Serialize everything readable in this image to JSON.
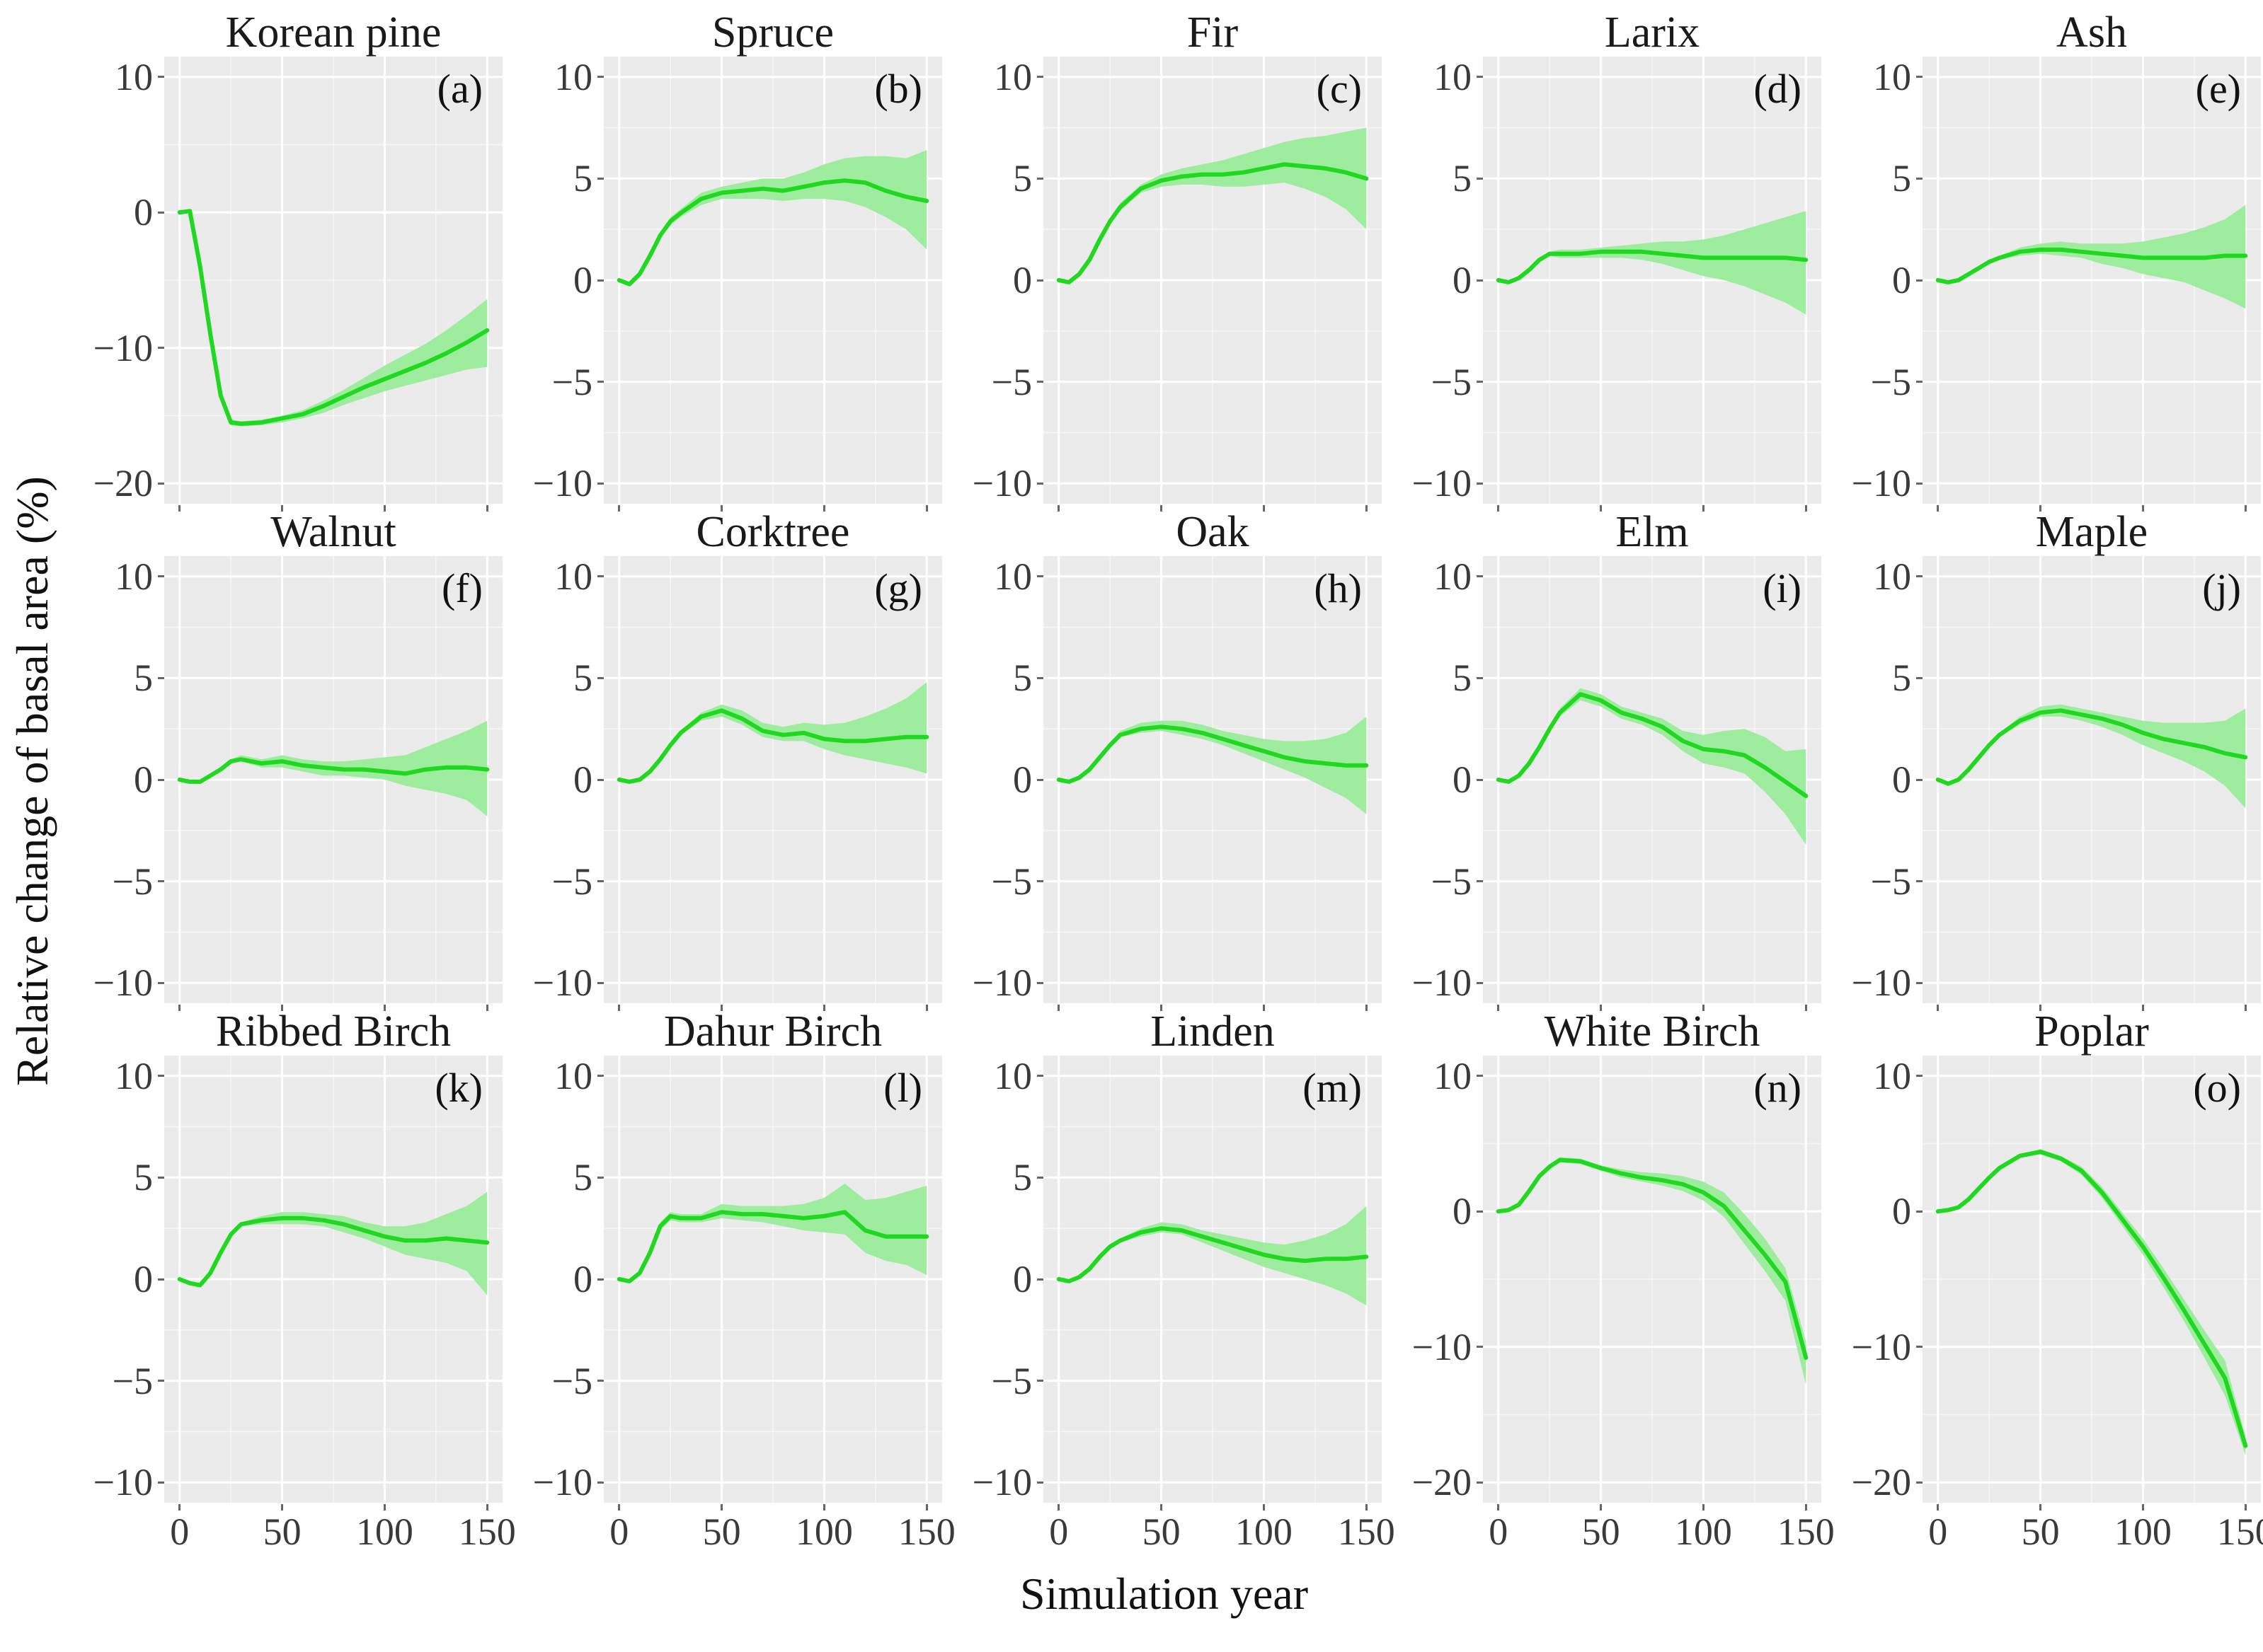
{
  "figure": {
    "colors": {
      "line": "#1fd81f",
      "band": "#9aec9a",
      "panel_bg": "#ebebeb",
      "grid_major": "#ffffff",
      "grid_minor": "#ffffff",
      "tick_label": "#3a3a3a",
      "tick_mark": "#666666",
      "title": "#1a1a1a"
    }
  },
  "chart_data": {
    "type": "line",
    "x_label": "Simulation year",
    "y_label": "Relative change of basal area (%)",
    "x_ticks": [
      0,
      50,
      100,
      150
    ],
    "x": [
      0,
      5,
      10,
      15,
      20,
      25,
      30,
      40,
      50,
      60,
      70,
      80,
      90,
      100,
      110,
      120,
      130,
      140,
      150
    ],
    "panels": [
      {
        "species": "Korean pine",
        "label": "(a)",
        "ylim": [
          -20,
          10
        ],
        "y_ticks": [
          10,
          0,
          -10,
          -20
        ],
        "mean": [
          0,
          0.1,
          -4.0,
          -9.0,
          -13.5,
          -15.5,
          -15.6,
          -15.5,
          -15.2,
          -14.9,
          -14.3,
          -13.6,
          -12.9,
          -12.3,
          -11.7,
          -11.1,
          -10.4,
          -9.6,
          -8.7
        ],
        "lower": [
          0,
          0.0,
          -4.2,
          -9.2,
          -13.7,
          -15.7,
          -15.8,
          -15.7,
          -15.5,
          -15.2,
          -14.8,
          -14.2,
          -13.7,
          -13.2,
          -12.8,
          -12.4,
          -12.0,
          -11.6,
          -11.4
        ],
        "upper": [
          0,
          0.2,
          -3.8,
          -8.8,
          -13.3,
          -15.3,
          -15.4,
          -15.3,
          -15.0,
          -14.6,
          -13.9,
          -13.1,
          -12.2,
          -11.3,
          -10.5,
          -9.7,
          -8.7,
          -7.6,
          -6.4
        ]
      },
      {
        "species": "Spruce",
        "label": "(b)",
        "ylim": [
          -10,
          10
        ],
        "y_ticks": [
          10,
          5,
          0,
          -5,
          -10
        ],
        "mean": [
          0,
          -0.2,
          0.3,
          1.2,
          2.2,
          2.9,
          3.3,
          4.0,
          4.3,
          4.4,
          4.5,
          4.4,
          4.6,
          4.8,
          4.9,
          4.8,
          4.4,
          4.1,
          3.9
        ],
        "lower": [
          0,
          -0.3,
          0.2,
          1.1,
          2.1,
          2.7,
          3.1,
          3.7,
          4.0,
          4.0,
          4.0,
          3.9,
          4.0,
          4.0,
          3.9,
          3.6,
          3.1,
          2.5,
          1.5
        ],
        "upper": [
          0,
          -0.1,
          0.4,
          1.3,
          2.3,
          3.1,
          3.5,
          4.3,
          4.6,
          4.8,
          5.0,
          5.0,
          5.3,
          5.7,
          6.0,
          6.1,
          6.1,
          6.0,
          6.4
        ]
      },
      {
        "species": "Fir",
        "label": "(c)",
        "ylim": [
          -10,
          10
        ],
        "y_ticks": [
          10,
          5,
          0,
          -5,
          -10
        ],
        "mean": [
          0,
          -0.1,
          0.3,
          1.0,
          2.0,
          2.9,
          3.6,
          4.5,
          4.9,
          5.1,
          5.2,
          5.2,
          5.3,
          5.5,
          5.7,
          5.6,
          5.5,
          5.3,
          5.0
        ],
        "lower": [
          0,
          -0.2,
          0.2,
          0.9,
          1.9,
          2.8,
          3.4,
          4.3,
          4.6,
          4.7,
          4.7,
          4.6,
          4.6,
          4.7,
          4.8,
          4.5,
          4.1,
          3.5,
          2.5
        ],
        "upper": [
          0,
          0.0,
          0.4,
          1.1,
          2.1,
          3.0,
          3.8,
          4.7,
          5.2,
          5.5,
          5.7,
          5.9,
          6.2,
          6.5,
          6.8,
          7.0,
          7.1,
          7.3,
          7.5
        ]
      },
      {
        "species": "Larix",
        "label": "(d)",
        "ylim": [
          -10,
          10
        ],
        "y_ticks": [
          10,
          5,
          0,
          -5,
          -10
        ],
        "mean": [
          0,
          -0.1,
          0.1,
          0.5,
          1.0,
          1.3,
          1.3,
          1.3,
          1.4,
          1.4,
          1.4,
          1.3,
          1.2,
          1.1,
          1.1,
          1.1,
          1.1,
          1.1,
          1.0
        ],
        "lower": [
          0,
          -0.2,
          0.0,
          0.4,
          0.9,
          1.2,
          1.1,
          1.1,
          1.1,
          1.1,
          1.0,
          0.8,
          0.5,
          0.2,
          0.0,
          -0.3,
          -0.7,
          -1.1,
          -1.7
        ],
        "upper": [
          0,
          0.0,
          0.2,
          0.6,
          1.1,
          1.4,
          1.5,
          1.5,
          1.6,
          1.7,
          1.8,
          1.9,
          1.9,
          2.0,
          2.2,
          2.5,
          2.8,
          3.1,
          3.4
        ]
      },
      {
        "species": "Ash",
        "label": "(e)",
        "ylim": [
          -10,
          10
        ],
        "y_ticks": [
          10,
          5,
          0,
          -5,
          -10
        ],
        "mean": [
          0,
          -0.1,
          0.0,
          0.3,
          0.6,
          0.9,
          1.1,
          1.4,
          1.5,
          1.5,
          1.4,
          1.3,
          1.2,
          1.1,
          1.1,
          1.1,
          1.1,
          1.2,
          1.2
        ],
        "lower": [
          0,
          -0.2,
          -0.1,
          0.2,
          0.5,
          0.8,
          1.0,
          1.2,
          1.3,
          1.2,
          1.1,
          0.8,
          0.6,
          0.3,
          0.1,
          -0.1,
          -0.5,
          -0.9,
          -1.4
        ],
        "upper": [
          0,
          0.0,
          0.1,
          0.4,
          0.7,
          1.0,
          1.2,
          1.6,
          1.8,
          1.9,
          1.8,
          1.8,
          1.8,
          1.9,
          2.1,
          2.3,
          2.6,
          3.0,
          3.7
        ]
      },
      {
        "species": "Walnut",
        "label": "(f)",
        "ylim": [
          -10,
          10
        ],
        "y_ticks": [
          10,
          5,
          0,
          -5,
          -10
        ],
        "mean": [
          0,
          -0.1,
          -0.1,
          0.2,
          0.5,
          0.9,
          1.0,
          0.8,
          0.9,
          0.7,
          0.6,
          0.5,
          0.5,
          0.4,
          0.3,
          0.5,
          0.6,
          0.6,
          0.5
        ],
        "lower": [
          0,
          -0.2,
          -0.2,
          0.1,
          0.4,
          0.8,
          0.9,
          0.6,
          0.6,
          0.4,
          0.2,
          0.2,
          0.1,
          0.0,
          -0.3,
          -0.5,
          -0.7,
          -1.0,
          -1.8
        ],
        "upper": [
          0,
          0.0,
          0.0,
          0.3,
          0.6,
          1.0,
          1.2,
          1.0,
          1.2,
          1.0,
          0.9,
          0.9,
          1.0,
          1.1,
          1.2,
          1.6,
          2.0,
          2.4,
          2.9
        ]
      },
      {
        "species": "Corktree",
        "label": "(g)",
        "ylim": [
          -10,
          10
        ],
        "y_ticks": [
          10,
          5,
          0,
          -5,
          -10
        ],
        "mean": [
          0,
          -0.1,
          0.0,
          0.4,
          1.0,
          1.7,
          2.3,
          3.1,
          3.4,
          3.0,
          2.4,
          2.2,
          2.3,
          2.0,
          1.9,
          1.9,
          2.0,
          2.1,
          2.1
        ],
        "lower": [
          0,
          -0.2,
          -0.1,
          0.3,
          0.9,
          1.6,
          2.2,
          2.9,
          3.1,
          2.7,
          2.1,
          1.9,
          1.9,
          1.5,
          1.2,
          1.0,
          0.8,
          0.6,
          0.3
        ],
        "upper": [
          0,
          0.0,
          0.1,
          0.5,
          1.1,
          1.8,
          2.4,
          3.3,
          3.7,
          3.4,
          2.8,
          2.6,
          2.8,
          2.7,
          2.8,
          3.1,
          3.5,
          4.0,
          4.8
        ]
      },
      {
        "species": "Oak",
        "label": "(h)",
        "ylim": [
          -10,
          10
        ],
        "y_ticks": [
          10,
          5,
          0,
          -5,
          -10
        ],
        "mean": [
          0,
          -0.1,
          0.1,
          0.5,
          1.1,
          1.7,
          2.2,
          2.5,
          2.6,
          2.5,
          2.3,
          2.0,
          1.7,
          1.4,
          1.1,
          0.9,
          0.8,
          0.7,
          0.7
        ],
        "lower": [
          0,
          -0.2,
          0.0,
          0.4,
          1.0,
          1.6,
          2.1,
          2.3,
          2.4,
          2.2,
          2.0,
          1.7,
          1.3,
          0.9,
          0.5,
          0.1,
          -0.4,
          -0.9,
          -1.7
        ],
        "upper": [
          0,
          0.0,
          0.2,
          0.6,
          1.2,
          1.8,
          2.4,
          2.8,
          2.9,
          2.9,
          2.7,
          2.4,
          2.2,
          2.0,
          1.9,
          1.9,
          2.0,
          2.3,
          3.1
        ]
      },
      {
        "species": "Elm",
        "label": "(i)",
        "ylim": [
          -10,
          10
        ],
        "y_ticks": [
          10,
          5,
          0,
          -5,
          -10
        ],
        "mean": [
          0,
          -0.1,
          0.2,
          0.8,
          1.6,
          2.5,
          3.3,
          4.2,
          3.9,
          3.3,
          3.0,
          2.6,
          1.9,
          1.5,
          1.4,
          1.2,
          0.6,
          -0.1,
          -0.8
        ],
        "lower": [
          0,
          -0.2,
          0.1,
          0.7,
          1.5,
          2.4,
          3.1,
          3.9,
          3.6,
          3.0,
          2.7,
          2.2,
          1.4,
          0.8,
          0.6,
          0.3,
          -0.6,
          -1.7,
          -3.2
        ],
        "upper": [
          0,
          0.0,
          0.3,
          0.9,
          1.7,
          2.6,
          3.5,
          4.5,
          4.2,
          3.6,
          3.3,
          3.0,
          2.4,
          2.2,
          2.4,
          2.5,
          2.1,
          1.4,
          1.5
        ]
      },
      {
        "species": "Maple",
        "label": "(j)",
        "ylim": [
          -10,
          10
        ],
        "y_ticks": [
          10,
          5,
          0,
          -5,
          -10
        ],
        "mean": [
          0,
          -0.2,
          0.0,
          0.5,
          1.1,
          1.7,
          2.2,
          2.9,
          3.3,
          3.4,
          3.2,
          3.0,
          2.7,
          2.3,
          2.0,
          1.8,
          1.6,
          1.3,
          1.1
        ],
        "lower": [
          0,
          -0.3,
          -0.1,
          0.4,
          1.0,
          1.6,
          2.1,
          2.7,
          3.1,
          3.1,
          2.9,
          2.6,
          2.2,
          1.7,
          1.3,
          0.9,
          0.4,
          -0.3,
          -1.4
        ],
        "upper": [
          0,
          -0.1,
          0.1,
          0.6,
          1.2,
          1.8,
          2.3,
          3.1,
          3.6,
          3.7,
          3.5,
          3.3,
          3.1,
          2.9,
          2.8,
          2.8,
          2.8,
          2.9,
          3.5
        ]
      },
      {
        "species": "Ribbed Birch",
        "label": "(k)",
        "ylim": [
          -10,
          10
        ],
        "y_ticks": [
          10,
          5,
          0,
          -5,
          -10
        ],
        "mean": [
          0,
          -0.2,
          -0.3,
          0.3,
          1.3,
          2.2,
          2.7,
          2.9,
          3.0,
          3.0,
          2.9,
          2.7,
          2.4,
          2.1,
          1.9,
          1.9,
          2.0,
          1.9,
          1.8
        ],
        "lower": [
          0,
          -0.3,
          -0.4,
          0.2,
          1.2,
          2.1,
          2.6,
          2.7,
          2.7,
          2.7,
          2.6,
          2.3,
          2.0,
          1.6,
          1.2,
          1.0,
          0.8,
          0.4,
          -0.8
        ],
        "upper": [
          0,
          -0.1,
          -0.2,
          0.4,
          1.4,
          2.3,
          2.8,
          3.1,
          3.3,
          3.3,
          3.2,
          3.1,
          2.8,
          2.6,
          2.6,
          2.8,
          3.2,
          3.6,
          4.3
        ]
      },
      {
        "species": "Dahur Birch",
        "label": "(l)",
        "ylim": [
          -10,
          10
        ],
        "y_ticks": [
          10,
          5,
          0,
          -5,
          -10
        ],
        "mean": [
          0,
          -0.1,
          0.3,
          1.3,
          2.6,
          3.1,
          3.0,
          3.0,
          3.3,
          3.2,
          3.2,
          3.1,
          3.0,
          3.1,
          3.3,
          2.4,
          2.1,
          2.1,
          2.1
        ],
        "lower": [
          0,
          -0.2,
          0.2,
          1.2,
          2.4,
          2.9,
          2.8,
          2.8,
          3.0,
          2.9,
          2.8,
          2.6,
          2.4,
          2.3,
          2.2,
          1.3,
          0.9,
          0.7,
          0.2
        ],
        "upper": [
          0,
          0.0,
          0.4,
          1.4,
          2.8,
          3.3,
          3.2,
          3.2,
          3.7,
          3.6,
          3.6,
          3.6,
          3.7,
          4.0,
          4.7,
          3.9,
          4.0,
          4.3,
          4.6
        ]
      },
      {
        "species": "Linden",
        "label": "(m)",
        "ylim": [
          -10,
          10
        ],
        "y_ticks": [
          10,
          5,
          0,
          -5,
          -10
        ],
        "mean": [
          0,
          -0.1,
          0.1,
          0.5,
          1.1,
          1.6,
          1.9,
          2.3,
          2.5,
          2.4,
          2.1,
          1.8,
          1.5,
          1.2,
          1.0,
          0.9,
          1.0,
          1.0,
          1.1
        ],
        "lower": [
          0,
          -0.2,
          0.0,
          0.4,
          1.0,
          1.5,
          1.8,
          2.1,
          2.3,
          2.2,
          1.8,
          1.4,
          1.0,
          0.6,
          0.3,
          0.0,
          -0.3,
          -0.7,
          -1.3
        ],
        "upper": [
          0,
          0.0,
          0.2,
          0.6,
          1.2,
          1.7,
          2.0,
          2.5,
          2.8,
          2.7,
          2.4,
          2.2,
          2.0,
          1.8,
          1.7,
          1.9,
          2.2,
          2.7,
          3.6
        ]
      },
      {
        "species": "White Birch",
        "label": "(n)",
        "ylim": [
          -20,
          10
        ],
        "y_ticks": [
          10,
          0,
          -10,
          -20
        ],
        "mean": [
          0,
          0.1,
          0.5,
          1.5,
          2.6,
          3.3,
          3.8,
          3.7,
          3.2,
          2.8,
          2.5,
          2.3,
          2.0,
          1.4,
          0.4,
          -1.4,
          -3.2,
          -5.2,
          -10.8
        ],
        "lower": [
          0,
          0.0,
          0.4,
          1.4,
          2.5,
          3.2,
          3.6,
          3.5,
          3.0,
          2.5,
          2.2,
          1.9,
          1.5,
          0.8,
          -0.4,
          -2.4,
          -4.4,
          -6.6,
          -12.8
        ],
        "upper": [
          0,
          0.2,
          0.6,
          1.6,
          2.7,
          3.4,
          4.0,
          3.9,
          3.4,
          3.1,
          2.9,
          2.8,
          2.6,
          2.2,
          1.4,
          -0.2,
          -2.0,
          -4.2,
          -9.6
        ]
      },
      {
        "species": "Poplar",
        "label": "(o)",
        "ylim": [
          -20,
          10
        ],
        "y_ticks": [
          10,
          0,
          -10,
          -20
        ],
        "mean": [
          0,
          0.1,
          0.3,
          0.9,
          1.7,
          2.5,
          3.2,
          4.1,
          4.4,
          3.9,
          3.0,
          1.4,
          -0.6,
          -2.6,
          -4.9,
          -7.3,
          -9.8,
          -12.3,
          -17.3
        ],
        "lower": [
          0,
          0.0,
          0.2,
          0.8,
          1.6,
          2.4,
          3.1,
          4.0,
          4.2,
          3.7,
          2.7,
          1.0,
          -1.1,
          -3.2,
          -5.6,
          -8.1,
          -10.8,
          -13.6,
          -18.0
        ],
        "upper": [
          0,
          0.2,
          0.4,
          1.0,
          1.8,
          2.6,
          3.3,
          4.2,
          4.6,
          4.1,
          3.3,
          1.8,
          -0.1,
          -2.0,
          -4.2,
          -6.5,
          -8.8,
          -11.0,
          -16.6
        ]
      }
    ]
  }
}
